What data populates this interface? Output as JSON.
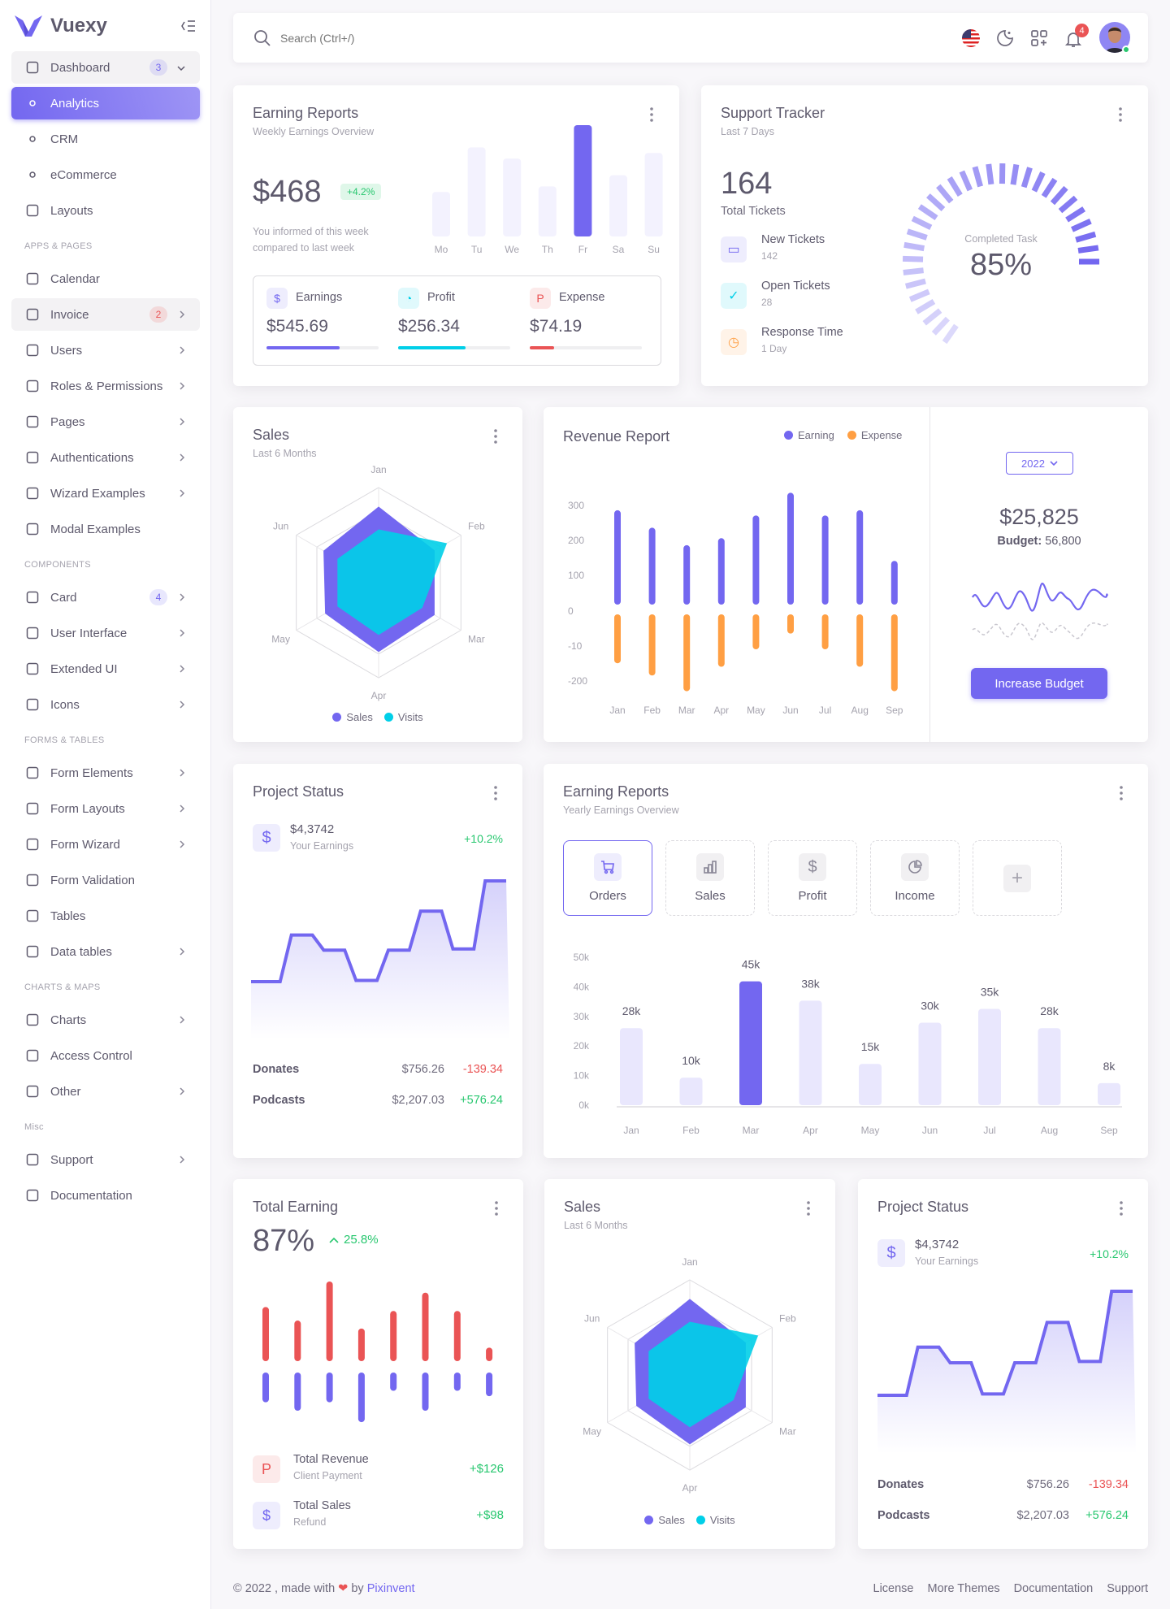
{
  "brand": {
    "name": "Vuexy",
    "color": "#7367f0"
  },
  "colors": {
    "primary": "#7367f0",
    "cyan": "#00cfe8",
    "orange": "#ff9f43",
    "red": "#ea5455",
    "green": "#28c76f"
  },
  "sidebar": {
    "items": [
      {
        "type": "item",
        "label": "Dashboard",
        "icon": "smart-home-icon",
        "badge": "3",
        "badge_color": "#7367f0",
        "chevron": "down",
        "group": true
      },
      {
        "type": "sub",
        "label": "Analytics",
        "active": true
      },
      {
        "type": "sub",
        "label": "CRM"
      },
      {
        "type": "sub",
        "label": "eCommerce"
      },
      {
        "type": "item",
        "label": "Layouts",
        "icon": "layout-icon"
      },
      {
        "type": "header",
        "label": "APPS & PAGES"
      },
      {
        "type": "item",
        "label": "Calendar",
        "icon": "calendar-icon"
      },
      {
        "type": "item",
        "label": "Invoice",
        "icon": "file-dollar-icon",
        "badge": "2",
        "badge_color": "#ea5455",
        "chevron": "right",
        "group": true
      },
      {
        "type": "item",
        "label": "Users",
        "icon": "users-icon",
        "chevron": "right"
      },
      {
        "type": "item",
        "label": "Roles & Permissions",
        "icon": "settings-icon",
        "chevron": "right"
      },
      {
        "type": "item",
        "label": "Pages",
        "icon": "file-icon",
        "chevron": "right"
      },
      {
        "type": "item",
        "label": "Authentications",
        "icon": "lock-icon",
        "chevron": "right"
      },
      {
        "type": "item",
        "label": "Wizard Examples",
        "icon": "forms-icon",
        "chevron": "right"
      },
      {
        "type": "item",
        "label": "Modal Examples",
        "icon": "square-icon"
      },
      {
        "type": "header",
        "label": "COMPONENTS"
      },
      {
        "type": "item",
        "label": "Card",
        "icon": "id-card-icon",
        "badge": "4",
        "badge_color": "#7367f0",
        "chevron": "right"
      },
      {
        "type": "item",
        "label": "User Interface",
        "icon": "color-swatch-icon",
        "chevron": "right"
      },
      {
        "type": "item",
        "label": "Extended UI",
        "icon": "components-icon",
        "chevron": "right"
      },
      {
        "type": "item",
        "label": "Icons",
        "icon": "terminal-icon",
        "chevron": "right"
      },
      {
        "type": "header",
        "label": "FORMS & TABLES"
      },
      {
        "type": "item",
        "label": "Form Elements",
        "icon": "toggle-icon",
        "chevron": "right"
      },
      {
        "type": "item",
        "label": "Form Layouts",
        "icon": "form-layout-icon",
        "chevron": "right"
      },
      {
        "type": "item",
        "label": "Form Wizard",
        "icon": "arrow-list-icon",
        "chevron": "right"
      },
      {
        "type": "item",
        "label": "Form Validation",
        "icon": "checkbox-icon"
      },
      {
        "type": "item",
        "label": "Tables",
        "icon": "table-icon"
      },
      {
        "type": "item",
        "label": "Data tables",
        "icon": "grid-icon",
        "chevron": "right"
      },
      {
        "type": "header",
        "label": "CHARTS & MAPS"
      },
      {
        "type": "item",
        "label": "Charts",
        "icon": "chart-bar-icon",
        "chevron": "right"
      },
      {
        "type": "item",
        "label": "Access Control",
        "icon": "command-icon"
      },
      {
        "type": "item",
        "label": "Other",
        "icon": "dots-icon",
        "chevron": "right"
      },
      {
        "type": "header",
        "label": "Misc"
      },
      {
        "type": "item",
        "label": "Support",
        "icon": "headphones-icon",
        "chevron": "right"
      },
      {
        "type": "item",
        "label": "Documentation",
        "icon": "file-text-icon"
      }
    ]
  },
  "navbar": {
    "search_placeholder": "Search (Ctrl+/)",
    "notifications": "4"
  },
  "earning_weekly": {
    "title": "Earning Reports",
    "subtitle": "Weekly Earnings Overview",
    "amount": "$468",
    "change": "+4.2%",
    "note_line1": "You informed of this week",
    "note_line2": "compared to last week",
    "chart_data": {
      "type": "bar",
      "categories": [
        "Mo",
        "Tu",
        "We",
        "Th",
        "Fr",
        "Sa",
        "Su"
      ],
      "values": [
        40,
        80,
        70,
        45,
        100,
        55,
        75
      ],
      "highlight": "Fr"
    },
    "stats": [
      {
        "label": "Earnings",
        "value": "$545.69",
        "progress": 65,
        "color": "#7367f0"
      },
      {
        "label": "Profit",
        "value": "$256.34",
        "progress": 60,
        "color": "#00cfe8"
      },
      {
        "label": "Expense",
        "value": "$74.19",
        "progress": 22,
        "color": "#ea5455"
      }
    ]
  },
  "support": {
    "title": "Support Tracker",
    "subtitle": "Last 7 Days",
    "total": "164",
    "total_label": "Total Tickets",
    "items": [
      {
        "label": "New Tickets",
        "value": "142",
        "color": "#7367f0"
      },
      {
        "label": "Open Tickets",
        "value": "28",
        "color": "#00cfe8"
      },
      {
        "label": "Response Time",
        "value": "1 Day",
        "color": "#ff9f43"
      }
    ],
    "gauge_label": "Completed Task",
    "gauge_value": "85%",
    "gauge_percent": 85
  },
  "sales": {
    "title": "Sales",
    "subtitle": "Last 6 Months",
    "chart_data": {
      "type": "radar",
      "categories": [
        "Jan",
        "Feb",
        "Mar",
        "Apr",
        "May",
        "Jun"
      ],
      "max": 100,
      "series": [
        {
          "name": "Sales",
          "values": [
            80,
            68,
            68,
            73,
            65,
            67
          ],
          "color": "#7367f0"
        },
        {
          "name": "Visits",
          "values": [
            56,
            83,
            53,
            55,
            50,
            50
          ],
          "color": "#00cfe8"
        }
      ]
    }
  },
  "revenue": {
    "title": "Revenue Report",
    "chart_data": {
      "type": "bar",
      "categories": [
        "Jan",
        "Feb",
        "Mar",
        "Apr",
        "May",
        "Jun",
        "Jul",
        "Aug",
        "Sep"
      ],
      "series": [
        {
          "name": "Earning",
          "values": [
            270,
            220,
            170,
            190,
            255,
            320,
            255,
            270,
            125
          ],
          "color": "#7367f0"
        },
        {
          "name": "Expense",
          "values": [
            -140,
            -175,
            -220,
            -150,
            -100,
            -55,
            -100,
            -150,
            -220
          ],
          "color": "#ff9f43"
        }
      ],
      "yticks": [
        "300",
        "200",
        "100",
        "0",
        "-10",
        "-200"
      ],
      "ylim": [
        -200,
        300
      ],
      "legend": "top-right"
    },
    "year": "2022",
    "total": "$25,825",
    "budget_label": "Budget:",
    "budget": "56,800",
    "button": "Increase Budget"
  },
  "project_status": {
    "title": "Project Status",
    "amount": "$4,3742",
    "amount_label": "Your Earnings",
    "change": "+10.2%",
    "chart_data": {
      "type": "area",
      "values": [
        20,
        57,
        45,
        21,
        45,
        76,
        46,
        100
      ]
    },
    "rows": [
      {
        "label": "Donates",
        "value": "$756.26",
        "change": "-139.34",
        "positive": false
      },
      {
        "label": "Podcasts",
        "value": "$2,207.03",
        "change": "+576.24",
        "positive": true
      }
    ]
  },
  "earning_yearly": {
    "title": "Earning Reports",
    "subtitle": "Yearly Earnings Overview",
    "tabs": [
      {
        "label": "Orders",
        "icon": "shopping-cart-icon"
      },
      {
        "label": "Sales",
        "icon": "chart-bar-icon"
      },
      {
        "label": "Profit",
        "icon": "currency-dollar-icon"
      },
      {
        "label": "Income",
        "icon": "chart-pie-icon"
      }
    ],
    "add_icon": "plus-icon",
    "chart_data": {
      "type": "bar",
      "categories": [
        "Jan",
        "Feb",
        "Mar",
        "Apr",
        "May",
        "Jun",
        "Jul",
        "Aug",
        "Sep"
      ],
      "values": [
        28,
        10,
        45,
        38,
        15,
        30,
        35,
        28,
        8
      ],
      "data_labels": [
        "28k",
        "10k",
        "45k",
        "38k",
        "15k",
        "30k",
        "35k",
        "28k",
        "8k"
      ],
      "yticks": [
        "50k",
        "40k",
        "30k",
        "20k",
        "10k",
        "0k"
      ],
      "ylim": [
        0,
        50
      ],
      "highlight": "Mar"
    }
  },
  "total_earning": {
    "title": "Total Earning",
    "percent": "87%",
    "change": "25.8%",
    "chart_data": {
      "type": "bar",
      "series": [
        {
          "name": "revenue",
          "values": [
            68,
            51,
            100,
            41,
            63,
            86,
            63,
            17
          ],
          "color": "#ea5455"
        },
        {
          "name": "sales",
          "values": [
            39,
            50,
            39,
            65,
            24,
            50,
            24,
            31
          ],
          "color": "#7367f0"
        }
      ]
    },
    "items": [
      {
        "label": "Total Revenue",
        "sub": "Client Payment",
        "value": "+$126",
        "icon": "brand-paypal-icon",
        "color": "#ea5455"
      },
      {
        "label": "Total Sales",
        "sub": "Refund",
        "value": "+$98",
        "icon": "currency-dollar-icon",
        "color": "#7367f0"
      }
    ]
  },
  "footer": {
    "copyright": "© 2022 , made with",
    "by": "by",
    "author": "Pixinvent",
    "links": [
      "License",
      "More Themes",
      "Documentation",
      "Support"
    ]
  }
}
